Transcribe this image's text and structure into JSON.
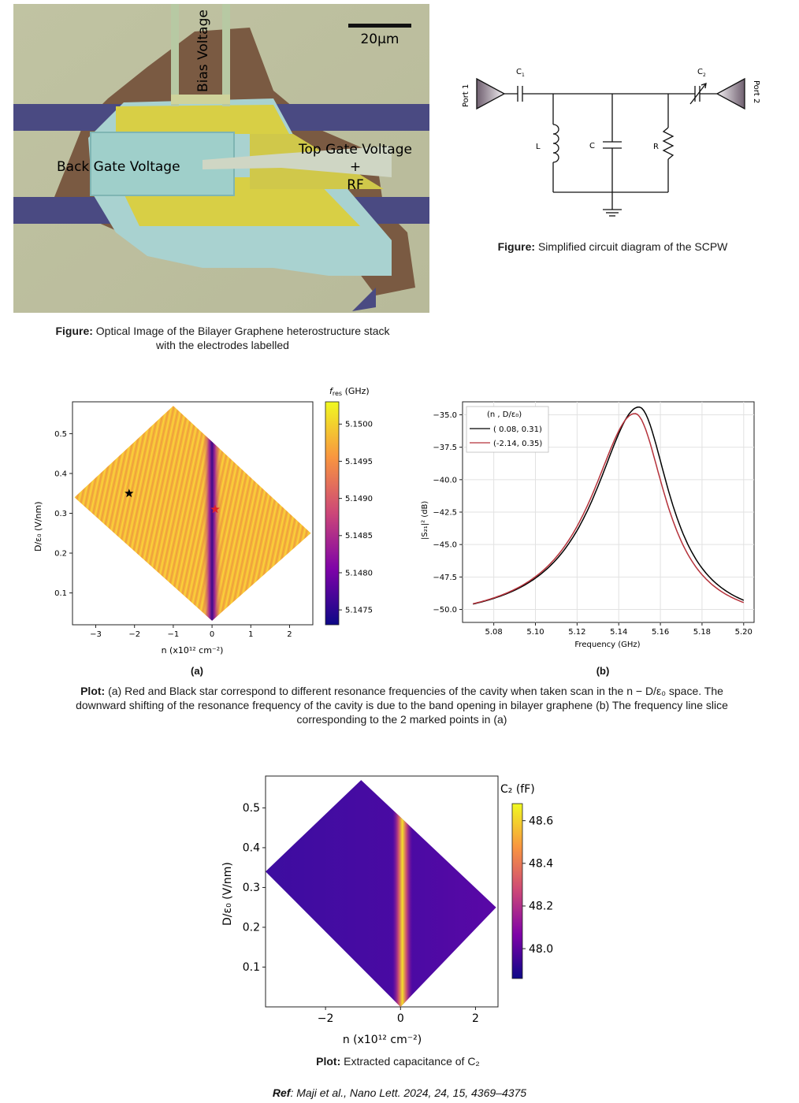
{
  "photo": {
    "scalebar": "20μm",
    "bias_label": "Bias Voltage",
    "back_gate_label": "Back Gate Voltage",
    "top_gate_label": "Top Gate Voltage",
    "plus_label": "+",
    "rf_label": "RF",
    "caption_bold": "Figure:",
    "caption_text": " Optical Image of the Bilayer Graphene heterostructure stack with the electrodes labelled"
  },
  "circuit": {
    "port1": "Port 1",
    "port2": "Port 2",
    "c1": "C",
    "c1_sub": "1",
    "c2": "C",
    "c2_sub": "2",
    "l": "L",
    "c": "C",
    "r": "R",
    "caption_bold": "Figure:",
    "caption_text": " Simplified circuit diagram of the SCPW"
  },
  "heatmap_a": {
    "panel": "(a)",
    "ylabel": "D/ε₀ (V/nm)",
    "xlabel": "n (x10¹² cm⁻²)",
    "cbar_label": "f_res (GHz)",
    "cbar_title": "f",
    "cbar_title_sub": "res",
    "cbar_title_unit": " (GHz)"
  },
  "spectrum_b": {
    "panel": "(b)",
    "legend_title": "(n , D/ε₀)",
    "xlabel": "Frequency (GHz)",
    "ylabel": "|S₂₁|² (dB)"
  },
  "plot_caption": {
    "bold": "Plot:",
    "text": " (a) Red and Black star correspond to different resonance frequencies of the cavity when taken scan in the n − D/ε₀ space. The downward shifting of the resonance frequency of the cavity is due to the band opening in bilayer graphene (b) The frequency line slice corresponding to the 2 marked points in (a)"
  },
  "heatmap_c": {
    "ylabel": "D/ε₀ (V/nm)",
    "xlabel": "n (x10¹² cm⁻²)",
    "cbar_title": "C₂ (fF)",
    "caption_bold": "Plot:",
    "caption_text": " Extracted capacitance of C₂"
  },
  "reference": {
    "bold": "Ref",
    "text": ": Maji et al., Nano Lett. 2024, 24, 15, 4369–4375"
  },
  "chart_data": [
    {
      "type": "heatmap",
      "id": "a",
      "x_ticks": [
        -3,
        -2,
        -1,
        0,
        1,
        2
      ],
      "y_ticks": [
        0.1,
        0.2,
        0.3,
        0.4,
        0.5
      ],
      "xlim": [
        -3.6,
        2.6
      ],
      "ylim": [
        0.02,
        0.58
      ],
      "diamond": [
        [
          -1.0,
          0.57
        ],
        [
          2.55,
          0.25
        ],
        [
          0.0,
          0.03
        ],
        [
          -3.55,
          0.34
        ]
      ],
      "colorbar_ticks": [
        5.1475,
        5.148,
        5.1485,
        5.149,
        5.1495,
        5.15
      ],
      "colorbar_range": [
        5.1473,
        5.1503
      ],
      "stripe_n": 0.0,
      "markers": [
        {
          "n": -2.14,
          "D": 0.35,
          "color": "#000000"
        },
        {
          "n": 0.08,
          "D": 0.31,
          "color": "#e0202a"
        }
      ]
    },
    {
      "type": "line",
      "id": "b",
      "xlim": [
        5.065,
        5.205
      ],
      "ylim": [
        -51.0,
        -34.0
      ],
      "x_ticks": [
        5.08,
        5.1,
        5.12,
        5.14,
        5.16,
        5.18,
        5.2
      ],
      "y_ticks": [
        -35.0,
        -37.5,
        -40.0,
        -42.5,
        -45.0,
        -47.5,
        -50.0
      ],
      "grid": true,
      "legend": "top-left",
      "series": [
        {
          "name": "( 0.08, 0.31)",
          "color": "#000000",
          "f0": 5.1497,
          "peak": -34.4
        },
        {
          "name": "(-2.14, 0.35)",
          "color": "#b5313a",
          "f0": 5.1478,
          "peak": -34.9
        }
      ]
    },
    {
      "type": "heatmap",
      "id": "c",
      "x_ticks": [
        -2,
        0,
        2
      ],
      "y_ticks": [
        0.1,
        0.2,
        0.3,
        0.4,
        0.5
      ],
      "xlim": [
        -3.6,
        2.6
      ],
      "ylim": [
        0.0,
        0.58
      ],
      "diamond": [
        [
          -1.05,
          0.57
        ],
        [
          2.55,
          0.25
        ],
        [
          0.0,
          0.0
        ],
        [
          -3.6,
          0.34
        ]
      ],
      "colorbar_ticks": [
        48.0,
        48.2,
        48.4,
        48.6
      ],
      "colorbar_range": [
        47.86,
        48.68
      ],
      "stripe_n": 0.05
    }
  ]
}
